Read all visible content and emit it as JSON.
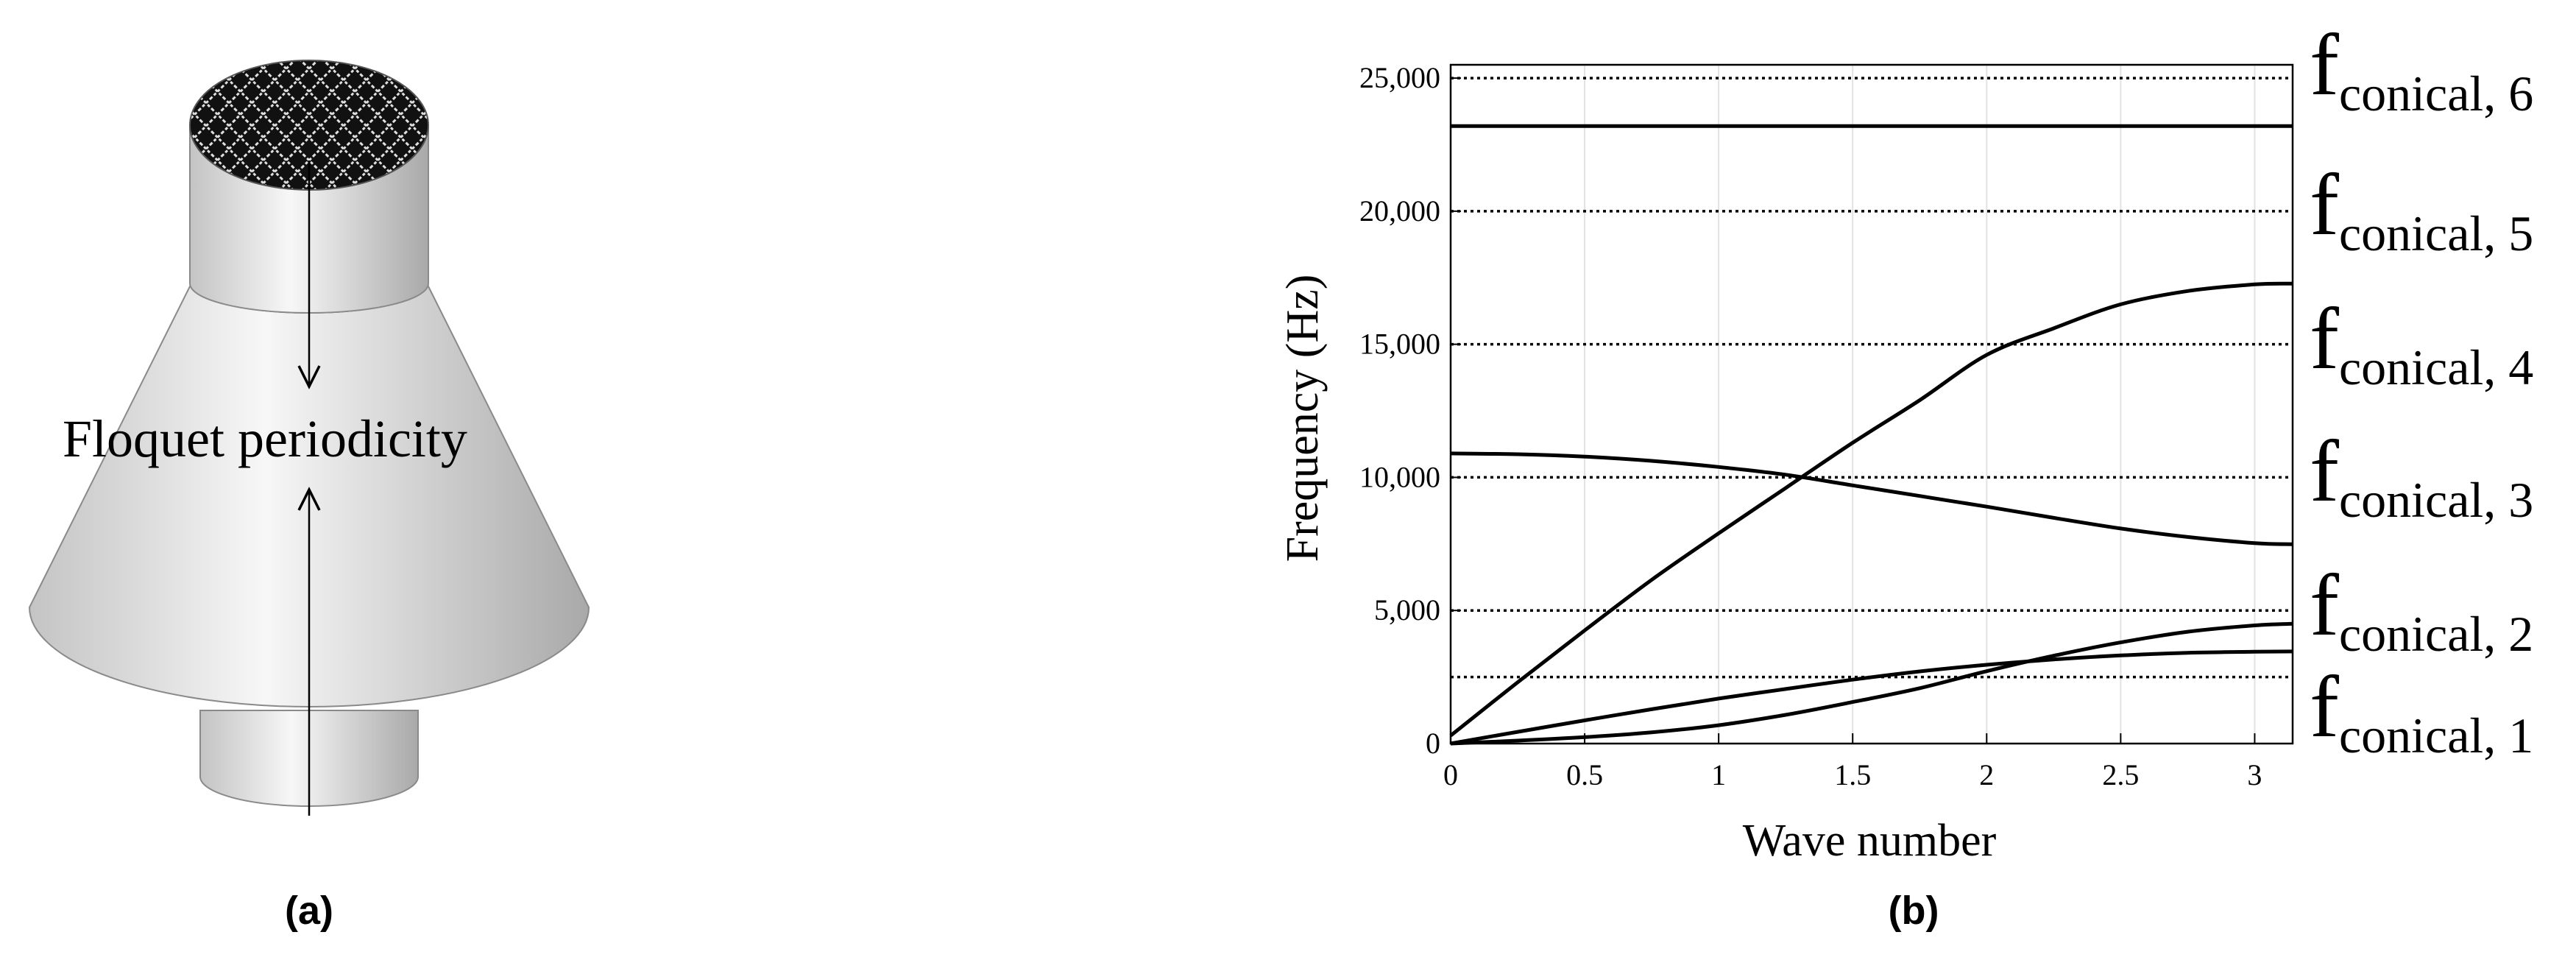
{
  "panel_a": {
    "annotation": "Floquet periodicity",
    "caption": "(a)"
  },
  "panel_b": {
    "caption": "(b)"
  },
  "chart_data": {
    "type": "line",
    "xlabel": "Wave number",
    "ylabel": "Frequency (Hz)",
    "xlim": [
      0,
      3.1416
    ],
    "ylim": [
      0,
      25500
    ],
    "x_ticks": [
      0,
      0.5,
      1,
      1.5,
      2,
      2.5,
      3
    ],
    "x_tick_labels": [
      "0",
      "0.5",
      "1",
      "1.5",
      "2",
      "2.5",
      "3"
    ],
    "y_ticks": [
      0,
      5000,
      10000,
      15000,
      20000,
      25000
    ],
    "y_tick_labels": [
      "0",
      "5,000",
      "10,000",
      "15,000",
      "20,000",
      "25,000"
    ],
    "grid": "vertical",
    "x": [
      0,
      0.25,
      0.5,
      0.75,
      1,
      1.25,
      1.5,
      1.75,
      2,
      2.25,
      2.5,
      2.75,
      3,
      3.1416
    ],
    "series": [
      {
        "values": [
          0,
          440,
          870,
          1290,
          1690,
          2050,
          2400,
          2710,
          2960,
          3160,
          3310,
          3410,
          3450,
          3460
        ]
      },
      {
        "values": [
          0,
          110,
          240,
          420,
          690,
          1080,
          1560,
          2080,
          2720,
          3300,
          3800,
          4200,
          4440,
          4500
        ]
      },
      {
        "values": [
          10900,
          10870,
          10780,
          10620,
          10390,
          10100,
          9700,
          9300,
          8900,
          8480,
          8080,
          7760,
          7530,
          7490
        ]
      },
      {
        "values": [
          300,
          2300,
          4250,
          6150,
          7900,
          9600,
          11300,
          12900,
          14600,
          15600,
          16500,
          17000,
          17250,
          17280
        ]
      },
      {
        "values": [
          23200,
          23200,
          23200,
          23200,
          23200,
          23200,
          23200,
          23200,
          23200,
          23200,
          23200,
          23200,
          23200,
          23200
        ]
      }
    ],
    "reference_lines": [
      {
        "y": 2500,
        "label_main": "f",
        "label_sub": "conical, 1"
      },
      {
        "y": 5000,
        "label_main": "f",
        "label_sub": "conical, 2"
      },
      {
        "y": 10000,
        "label_main": "f",
        "label_sub": "conical, 3"
      },
      {
        "y": 15000,
        "label_main": "f",
        "label_sub": "conical, 4"
      },
      {
        "y": 20000,
        "label_main": "f",
        "label_sub": "conical, 5"
      },
      {
        "y": 25000,
        "label_main": "f",
        "label_sub": "conical, 6"
      }
    ]
  }
}
